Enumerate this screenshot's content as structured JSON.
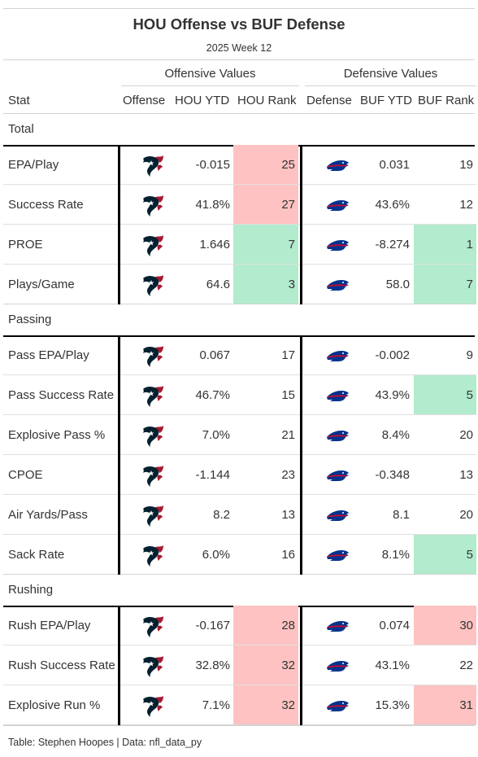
{
  "header": {
    "title": "HOU Offense vs BUF Defense",
    "subtitle": "2025 Week 12"
  },
  "spanners": {
    "offense": "Offensive Values",
    "defense": "Defensive Values"
  },
  "columns": {
    "stat": "Stat",
    "offense": "Offense",
    "hou_ytd": "HOU YTD",
    "hou_rank": "HOU Rank",
    "defense": "Defense",
    "buf_ytd": "BUF YTD",
    "buf_rank": "BUF Rank"
  },
  "icons": {
    "offense_logo": "texans-logo-icon",
    "defense_logo": "bills-logo-icon",
    "texans_navy": "#03202f",
    "texans_red": "#a71930",
    "bills_blue": "#00338d",
    "bills_red": "#c60c30"
  },
  "colors": {
    "good": "#b2ebce",
    "bad": "#ffc2c2"
  },
  "groups": [
    {
      "label": "Total",
      "rows": [
        {
          "stat": "EPA/Play",
          "hou_ytd": "-0.015",
          "hou_rank": "25",
          "hou_hl": "bad",
          "buf_ytd": "0.031",
          "buf_rank": "19",
          "buf_hl": ""
        },
        {
          "stat": "Success Rate",
          "hou_ytd": "41.8%",
          "hou_rank": "27",
          "hou_hl": "bad",
          "buf_ytd": "43.6%",
          "buf_rank": "12",
          "buf_hl": ""
        },
        {
          "stat": "PROE",
          "hou_ytd": "1.646",
          "hou_rank": "7",
          "hou_hl": "good",
          "buf_ytd": "-8.274",
          "buf_rank": "1",
          "buf_hl": "good"
        },
        {
          "stat": "Plays/Game",
          "hou_ytd": "64.6",
          "hou_rank": "3",
          "hou_hl": "good",
          "buf_ytd": "58.0",
          "buf_rank": "7",
          "buf_hl": "good"
        }
      ]
    },
    {
      "label": "Passing",
      "rows": [
        {
          "stat": "Pass EPA/Play",
          "hou_ytd": "0.067",
          "hou_rank": "17",
          "hou_hl": "",
          "buf_ytd": "-0.002",
          "buf_rank": "9",
          "buf_hl": ""
        },
        {
          "stat": "Pass Success Rate",
          "hou_ytd": "46.7%",
          "hou_rank": "15",
          "hou_hl": "",
          "buf_ytd": "43.9%",
          "buf_rank": "5",
          "buf_hl": "good"
        },
        {
          "stat": "Explosive Pass %",
          "hou_ytd": "7.0%",
          "hou_rank": "21",
          "hou_hl": "",
          "buf_ytd": "8.4%",
          "buf_rank": "20",
          "buf_hl": ""
        },
        {
          "stat": "CPOE",
          "hou_ytd": "-1.144",
          "hou_rank": "23",
          "hou_hl": "",
          "buf_ytd": "-0.348",
          "buf_rank": "13",
          "buf_hl": ""
        },
        {
          "stat": "Air Yards/Pass",
          "hou_ytd": "8.2",
          "hou_rank": "13",
          "hou_hl": "",
          "buf_ytd": "8.1",
          "buf_rank": "20",
          "buf_hl": ""
        },
        {
          "stat": "Sack Rate",
          "hou_ytd": "6.0%",
          "hou_rank": "16",
          "hou_hl": "",
          "buf_ytd": "8.1%",
          "buf_rank": "5",
          "buf_hl": "good"
        }
      ]
    },
    {
      "label": "Rushing",
      "rows": [
        {
          "stat": "Rush EPA/Play",
          "hou_ytd": "-0.167",
          "hou_rank": "28",
          "hou_hl": "bad",
          "buf_ytd": "0.074",
          "buf_rank": "30",
          "buf_hl": "bad"
        },
        {
          "stat": "Rush Success Rate",
          "hou_ytd": "32.8%",
          "hou_rank": "32",
          "hou_hl": "bad",
          "buf_ytd": "43.1%",
          "buf_rank": "22",
          "buf_hl": ""
        },
        {
          "stat": "Explosive Run %",
          "hou_ytd": "7.1%",
          "hou_rank": "32",
          "hou_hl": "bad",
          "buf_ytd": "15.3%",
          "buf_rank": "31",
          "buf_hl": "bad"
        }
      ]
    }
  ],
  "footer": "Table: Stephen Hoopes | Data: nfl_data_py"
}
